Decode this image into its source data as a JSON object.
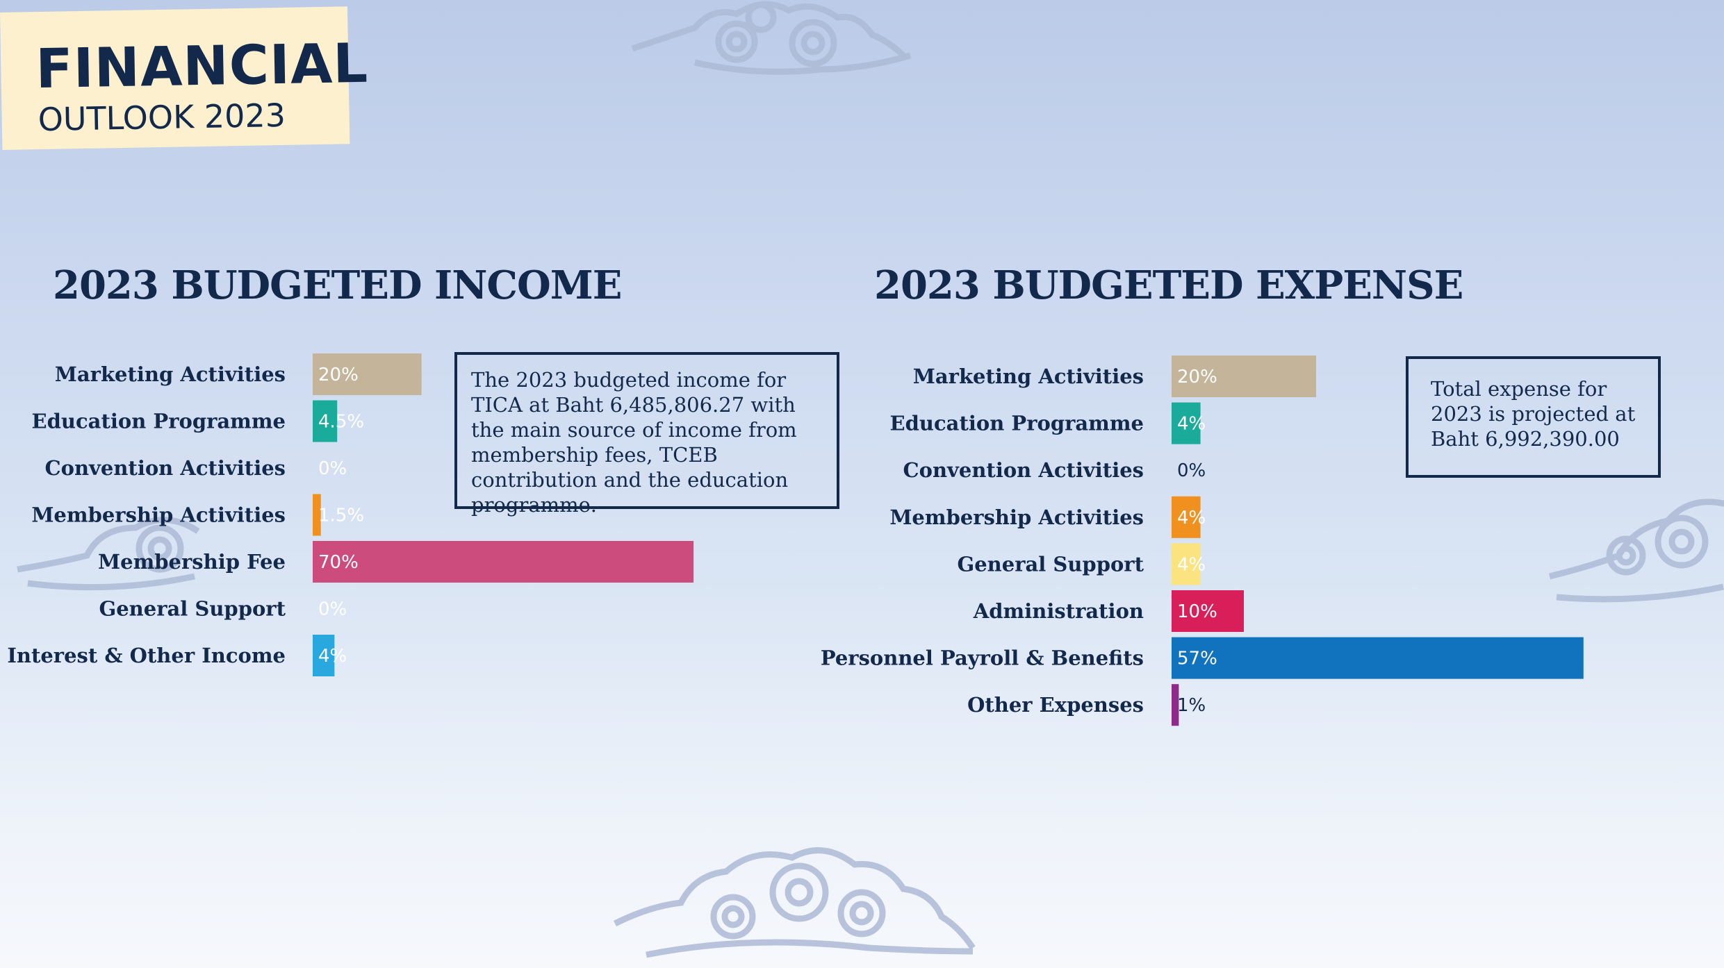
{
  "header": {
    "title_main": "FINANCIAL",
    "title_sub": "OUTLOOK 2023"
  },
  "colors": {
    "navy": "#13294b",
    "title_card": "#fdf0cf"
  },
  "chart_data": [
    {
      "type": "bar",
      "orientation": "horizontal",
      "title": "2023 BUDGETED INCOME",
      "unit": "%",
      "categories": [
        "Marketing Activities",
        "Education Programme",
        "Convention Activities",
        "Membership Activities",
        "Membership Fee",
        "General Support",
        "Interest & Other Income"
      ],
      "values": [
        20,
        4.5,
        0,
        1.5,
        70,
        0,
        4
      ],
      "labels": [
        "20%",
        "4.5%",
        "0%",
        "1.5%",
        "70%",
        "0%",
        "4%"
      ],
      "colors": [
        "#c4b59a",
        "#1aab9b",
        "#c4b59a",
        "#f0901f",
        "#cc4c7e",
        "#c4b59a",
        "#29a8e0"
      ],
      "label_colors": [
        "#ffffff",
        "#ffffff",
        "#ffffff",
        "#ffffff",
        "#ffffff",
        "#ffffff",
        "#ffffff"
      ],
      "note": "The 2023 budgeted income for TICA at Baht 6,485,806.27 with the main source of income from membership fees, TCEB contribution and the education programme."
    },
    {
      "type": "bar",
      "orientation": "horizontal",
      "title": "2023 BUDGETED EXPENSE",
      "unit": "%",
      "categories": [
        "Marketing Activities",
        "Education Programme",
        "Convention Activities",
        "Membership Activities",
        "General Support",
        "Administration",
        "Personnel Payroll & Benefits",
        "Other Expenses"
      ],
      "values": [
        20,
        4,
        0,
        4,
        4,
        10,
        57,
        1
      ],
      "labels": [
        "20%",
        "4%",
        "0%",
        "4%",
        "4%",
        "10%",
        "57%",
        "1%"
      ],
      "colors": [
        "#c4b59a",
        "#1aab9b",
        "#c4b59a",
        "#f0901f",
        "#fbe37f",
        "#d81f5a",
        "#1172bd",
        "#8e2a8a"
      ],
      "label_colors": [
        "#ffffff",
        "#ffffff",
        "#13294b",
        "#ffffff",
        "#ffffff",
        "#ffffff",
        "#ffffff",
        "#13294b"
      ],
      "note": "Total expense for 2023 is projected at Baht 6,992,390.00"
    }
  ]
}
